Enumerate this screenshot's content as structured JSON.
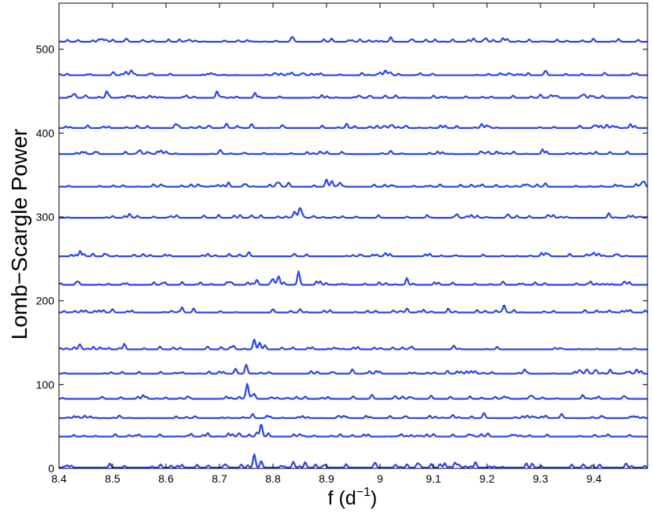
{
  "chart_data": {
    "type": "line",
    "title": "",
    "xlabel": "f (d",
    "xlabel_superscript": "−1",
    "xlabel_close": ")",
    "ylabel": "Lomb−Scargle Power",
    "xlim": [
      8.4,
      9.5
    ],
    "ylim": [
      0,
      555
    ],
    "xticks": [
      8.4,
      8.5,
      8.6,
      8.7,
      8.8,
      8.9,
      9.0,
      9.1,
      9.2,
      9.3,
      9.4
    ],
    "xtick_labels": [
      "8.4",
      "8.5",
      "8.6",
      "8.7",
      "8.8",
      "8.9",
      "9",
      "9.1",
      "9.2",
      "9.3",
      "9.4"
    ],
    "yticks": [
      0,
      100,
      200,
      300,
      400,
      500
    ],
    "ytick_labels": [
      "0",
      "100",
      "200",
      "300",
      "400",
      "500"
    ],
    "grid": false,
    "line_color": "#2c45e8",
    "series": [
      {
        "baseline": 1,
        "noise": 2.0,
        "peaks": [
          [
            8.765,
            16
          ],
          [
            8.778,
            8
          ],
          [
            8.838,
            7
          ],
          [
            9.07,
            5
          ],
          [
            9.38,
            4
          ],
          [
            9.46,
            5
          ]
        ]
      },
      {
        "baseline": 38,
        "noise": 1.4,
        "peaks": [
          [
            8.778,
            15
          ],
          [
            8.77,
            5
          ],
          [
            8.85,
            3
          ],
          [
            9.1,
            3
          ]
        ]
      },
      {
        "baseline": 60,
        "noise": 1.4,
        "peaks": [
          [
            8.762,
            5
          ],
          [
            9.195,
            4
          ],
          [
            9.34,
            4
          ],
          [
            9.31,
            3
          ]
        ]
      },
      {
        "baseline": 83,
        "noise": 1.5,
        "peaks": [
          [
            8.752,
            17
          ],
          [
            8.765,
            6
          ],
          [
            8.985,
            5
          ],
          [
            8.95,
            3
          ]
        ]
      },
      {
        "baseline": 113,
        "noise": 1.6,
        "peaks": [
          [
            8.75,
            11
          ],
          [
            8.73,
            6
          ],
          [
            9.27,
            4
          ],
          [
            9.48,
            3
          ]
        ]
      },
      {
        "baseline": 142,
        "noise": 1.6,
        "peaks": [
          [
            8.765,
            12
          ],
          [
            8.775,
            8
          ],
          [
            8.785,
            5
          ],
          [
            8.44,
            4
          ]
        ]
      },
      {
        "baseline": 186,
        "noise": 1.5,
        "peaks": [
          [
            9.232,
            9
          ],
          [
            8.5,
            4
          ],
          [
            8.8,
            4
          ]
        ]
      },
      {
        "baseline": 219,
        "noise": 1.7,
        "peaks": [
          [
            8.848,
            14
          ],
          [
            8.81,
            8
          ],
          [
            8.8,
            7
          ],
          [
            8.77,
            6
          ],
          [
            9.23,
            4
          ]
        ]
      },
      {
        "baseline": 253,
        "noise": 1.5,
        "peaks": [
          [
            8.755,
            5
          ],
          [
            9.31,
            4
          ],
          [
            9.01,
            4
          ],
          [
            8.84,
            3
          ]
        ]
      },
      {
        "baseline": 299,
        "noise": 1.6,
        "peaks": [
          [
            8.85,
            11
          ],
          [
            8.84,
            7
          ],
          [
            8.76,
            3
          ],
          [
            8.62,
            3
          ]
        ]
      },
      {
        "baseline": 336,
        "noise": 1.7,
        "peaks": [
          [
            8.9,
            9
          ],
          [
            8.91,
            7
          ],
          [
            8.925,
            5
          ],
          [
            9.49,
            5
          ],
          [
            8.66,
            3
          ]
        ]
      },
      {
        "baseline": 375,
        "noise": 1.5,
        "peaks": [
          [
            9.02,
            4
          ],
          [
            9.25,
            3
          ],
          [
            8.6,
            3
          ]
        ]
      },
      {
        "baseline": 406,
        "noise": 1.6,
        "peaks": [
          [
            9.19,
            5
          ],
          [
            8.76,
            5
          ],
          [
            8.62,
            3
          ],
          [
            9.4,
            3
          ]
        ]
      },
      {
        "baseline": 442,
        "noise": 1.6,
        "peaks": [
          [
            8.695,
            5
          ],
          [
            9.3,
            4
          ],
          [
            9.01,
            3
          ],
          [
            8.45,
            3
          ]
        ]
      },
      {
        "baseline": 469,
        "noise": 1.4,
        "peaks": [
          [
            8.535,
            6
          ],
          [
            9.01,
            6
          ],
          [
            9.02,
            3
          ],
          [
            9.42,
            3
          ]
        ]
      },
      {
        "baseline": 509,
        "noise": 1.4,
        "peaks": [
          [
            8.835,
            5
          ],
          [
            9.02,
            5
          ],
          [
            9.175,
            4
          ],
          [
            8.48,
            3
          ]
        ]
      }
    ]
  }
}
